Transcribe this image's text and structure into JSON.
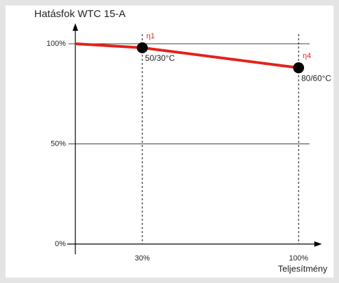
{
  "chart_data": {
    "type": "line",
    "title": "Hatásfok WTC 15-A",
    "x_label": "Teljesítmény",
    "x": [
      0,
      30,
      100
    ],
    "series": [
      {
        "name": null,
        "color": "#e32219",
        "values": [
          100,
          98,
          88
        ]
      }
    ],
    "markers": [
      {
        "name": "η1",
        "label": "50/30°C"
      },
      {
        "name": "η4",
        "label": "80/60°C"
      }
    ],
    "xlim": [
      0,
      100
    ],
    "xticks": [
      {
        "value": 30,
        "label": "30%"
      },
      {
        "value": 100,
        "label": "100%"
      }
    ],
    "ylim": [
      0,
      100
    ],
    "yticks": [
      {
        "value": 0,
        "label": "0%"
      },
      {
        "value": 50,
        "label": "50%"
      },
      {
        "value": 100,
        "label": "100%"
      }
    ],
    "grid": true
  }
}
